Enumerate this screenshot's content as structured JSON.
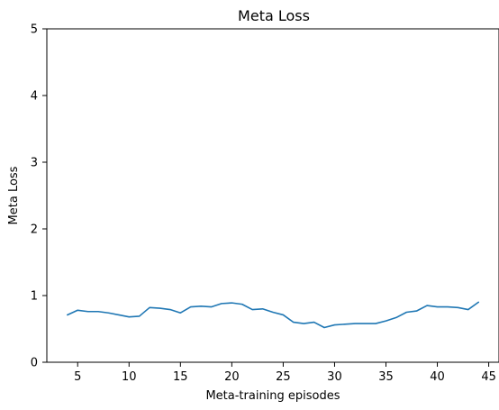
{
  "chart_data": {
    "type": "line",
    "title": "Meta Loss",
    "xlabel": "Meta-training episodes",
    "ylabel": "Meta Loss",
    "xlim": [
      2,
      46
    ],
    "ylim": [
      0,
      5
    ],
    "xticks": [
      5,
      10,
      15,
      20,
      25,
      30,
      35,
      40,
      45
    ],
    "yticks": [
      0,
      1,
      2,
      3,
      4,
      5
    ],
    "grid": false,
    "colors": {
      "series": "#1f77b4"
    },
    "series": [
      {
        "x": [
          4,
          5,
          6,
          7,
          8,
          9,
          10,
          11,
          12,
          13,
          14,
          15,
          16,
          17,
          18,
          19,
          20,
          21,
          22,
          23,
          24,
          25,
          26,
          27,
          28,
          29,
          30,
          31,
          32,
          33,
          34,
          35,
          36,
          37,
          38,
          39,
          40,
          41,
          42,
          43,
          44
        ],
        "values": [
          0.71,
          0.78,
          0.76,
          0.76,
          0.74,
          0.71,
          0.68,
          0.69,
          0.82,
          0.81,
          0.79,
          0.74,
          0.83,
          0.84,
          0.83,
          0.88,
          0.89,
          0.87,
          0.79,
          0.8,
          0.75,
          0.71,
          0.6,
          0.58,
          0.6,
          0.52,
          0.56,
          0.57,
          0.58,
          0.58,
          0.58,
          0.62,
          0.67,
          0.75,
          0.77,
          0.85,
          0.83,
          0.83,
          0.82,
          0.79,
          0.9
        ]
      }
    ]
  }
}
